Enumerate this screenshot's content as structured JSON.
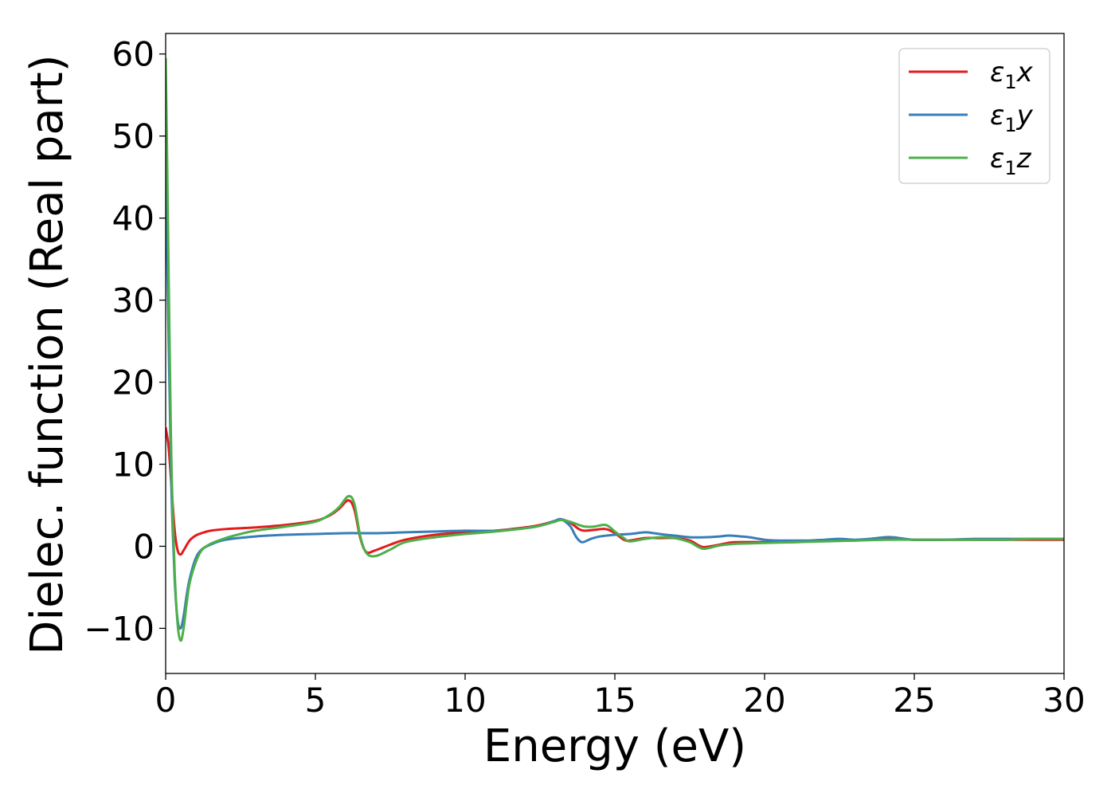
{
  "chart_data": {
    "type": "line",
    "title": "",
    "xlabel": "Energy (eV)",
    "ylabel": "Dielec. function (Real part)",
    "xlim": [
      0,
      30
    ],
    "ylim": [
      -15.5,
      62.5
    ],
    "xticks": [
      0,
      5,
      10,
      15,
      20,
      25,
      30
    ],
    "yticks": [
      -10,
      0,
      10,
      20,
      30,
      40,
      50,
      60
    ],
    "xtick_labels": [
      "0",
      "5",
      "10",
      "15",
      "20",
      "25",
      "30"
    ],
    "ytick_labels": [
      "−10",
      "0",
      "10",
      "20",
      "30",
      "40",
      "50",
      "60"
    ],
    "grid": false,
    "legend": "top-right",
    "series": [
      {
        "name": "ε1x",
        "legend_main": "ε",
        "legend_sub": "1",
        "legend_tail": "x",
        "color": "#e41a1c",
        "x": [
          0,
          0.1,
          0.2,
          0.3,
          0.4,
          0.5,
          0.6,
          0.8,
          1.0,
          1.2,
          1.5,
          2.0,
          3.0,
          4.0,
          5.0,
          5.5,
          5.8,
          6.1,
          6.3,
          6.5,
          6.7,
          7.0,
          7.5,
          8.0,
          9.0,
          10.0,
          11.0,
          12.0,
          12.5,
          13.0,
          13.2,
          13.5,
          13.8,
          14.0,
          14.3,
          14.7,
          15.0,
          15.3,
          15.5,
          16.0,
          16.5,
          17.0,
          17.5,
          17.8,
          18.0,
          18.5,
          19.0,
          20.0,
          21.0,
          22.0,
          23.0,
          24.0,
          25.0,
          26.0,
          27.0,
          28.0,
          29.0,
          30.0
        ],
        "y": [
          14.5,
          12,
          7,
          2,
          -0.5,
          -1,
          -0.5,
          0.7,
          1.3,
          1.6,
          1.9,
          2.1,
          2.3,
          2.6,
          3.1,
          3.8,
          4.6,
          5.6,
          4.5,
          1,
          -0.7,
          -0.5,
          0.2,
          0.8,
          1.4,
          1.7,
          1.9,
          2.3,
          2.6,
          3.1,
          3.3,
          2.9,
          2.1,
          1.9,
          2.0,
          2.1,
          1.6,
          0.8,
          0.7,
          1.0,
          1.0,
          1.0,
          0.7,
          0.1,
          -0.1,
          0.2,
          0.5,
          0.5,
          0.5,
          0.7,
          0.7,
          0.9,
          0.8,
          0.8,
          0.8,
          0.8,
          0.8,
          0.8
        ]
      },
      {
        "name": "ε1y",
        "legend_main": "ε",
        "legend_sub": "1",
        "legend_tail": "y",
        "color": "#377eb8",
        "x": [
          0,
          0.05,
          0.1,
          0.15,
          0.2,
          0.3,
          0.4,
          0.5,
          0.6,
          0.7,
          0.8,
          1.0,
          1.2,
          1.5,
          2.0,
          3.0,
          4.0,
          5.0,
          6.0,
          7.0,
          8.0,
          9.0,
          10.0,
          11.0,
          12.0,
          12.5,
          13.0,
          13.2,
          13.5,
          13.7,
          13.9,
          14.2,
          14.5,
          15.0,
          15.5,
          16.0,
          16.3,
          16.7,
          17.0,
          17.5,
          18.0,
          18.5,
          18.8,
          19.2,
          19.5,
          20.0,
          20.5,
          21.0,
          21.5,
          22.0,
          22.5,
          23.0,
          23.5,
          24.0,
          24.3,
          25.0,
          26.0,
          27.0,
          28.0,
          29.0,
          30.0
        ],
        "y": [
          45.5,
          36,
          25,
          15,
          6,
          -4,
          -9,
          -10,
          -8.5,
          -6,
          -4,
          -1.5,
          -0.4,
          0.2,
          0.8,
          1.2,
          1.4,
          1.5,
          1.6,
          1.6,
          1.7,
          1.8,
          1.9,
          1.9,
          2.2,
          2.5,
          3.1,
          3.3,
          2.5,
          1.2,
          0.5,
          0.9,
          1.2,
          1.4,
          1.5,
          1.7,
          1.6,
          1.4,
          1.3,
          1.1,
          1.1,
          1.2,
          1.3,
          1.2,
          1.1,
          0.8,
          0.7,
          0.7,
          0.7,
          0.8,
          0.9,
          0.8,
          0.9,
          1.1,
          1.1,
          0.8,
          0.8,
          0.9,
          0.9,
          0.9,
          0.9
        ]
      },
      {
        "name": "ε1z",
        "legend_main": "ε",
        "legend_sub": "1",
        "legend_tail": "z",
        "color": "#4daf4a",
        "x": [
          0,
          0.05,
          0.1,
          0.15,
          0.2,
          0.3,
          0.4,
          0.5,
          0.6,
          0.7,
          0.8,
          1.0,
          1.2,
          1.5,
          2.0,
          2.5,
          3.0,
          4.0,
          5.0,
          5.5,
          5.8,
          6.1,
          6.3,
          6.5,
          6.7,
          7.0,
          7.5,
          8.0,
          9.0,
          10.0,
          11.0,
          12.0,
          12.5,
          13.0,
          13.2,
          13.5,
          13.8,
          14.0,
          14.3,
          14.7,
          15.0,
          15.3,
          15.5,
          16.0,
          16.5,
          17.0,
          17.5,
          17.8,
          18.0,
          18.5,
          19.0,
          20.0,
          21.0,
          22.0,
          23.0,
          24.0,
          25.0,
          26.0,
          27.0,
          28.0,
          29.0,
          30.0
        ],
        "y": [
          59.5,
          47,
          33,
          20,
          9,
          -3,
          -9.5,
          -11.5,
          -10,
          -7,
          -4.5,
          -2,
          -0.5,
          0.3,
          1.0,
          1.5,
          1.9,
          2.4,
          3.0,
          3.9,
          4.8,
          6.1,
          5.2,
          1.2,
          -0.8,
          -1.2,
          -0.4,
          0.5,
          1.1,
          1.5,
          1.8,
          2.2,
          2.5,
          3.0,
          3.2,
          3.0,
          2.6,
          2.4,
          2.4,
          2.6,
          1.8,
          1.0,
          0.6,
          0.9,
          1.1,
          1.0,
          0.5,
          -0.1,
          -0.3,
          0.1,
          0.3,
          0.4,
          0.5,
          0.6,
          0.7,
          0.8,
          0.8,
          0.8,
          0.8,
          0.8,
          0.9,
          0.9
        ]
      }
    ]
  }
}
